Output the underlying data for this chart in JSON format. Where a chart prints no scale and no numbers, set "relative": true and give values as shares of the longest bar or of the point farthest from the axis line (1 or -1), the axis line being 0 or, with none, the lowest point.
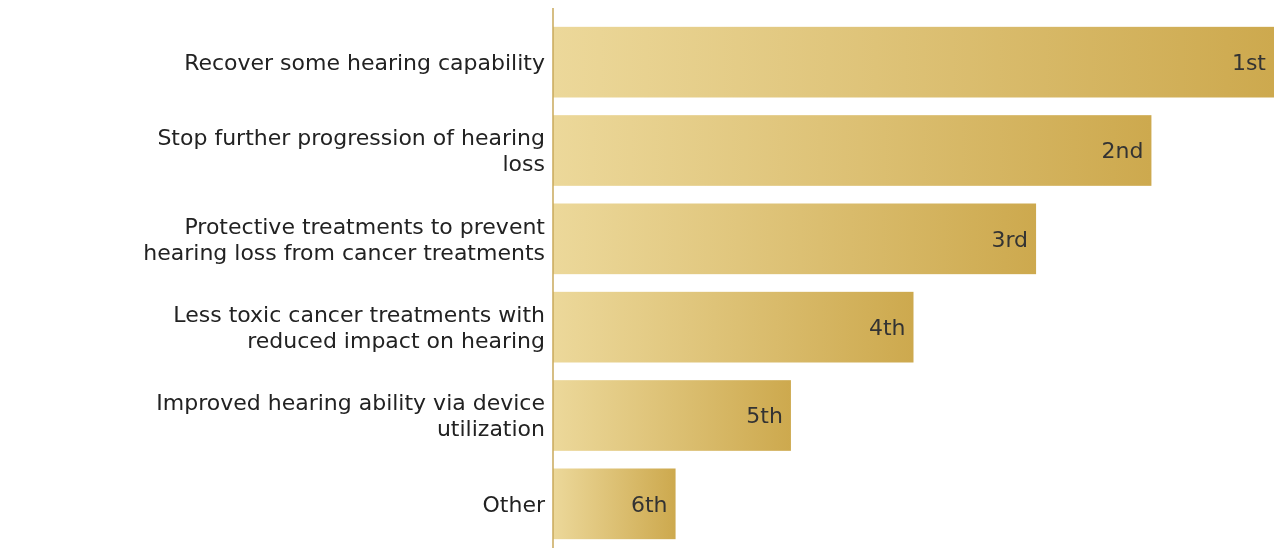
{
  "chart_data": {
    "type": "bar",
    "orientation": "horizontal",
    "relative": true,
    "categories": [
      "Recover some hearing capability",
      "Stop further progression of hearing loss",
      "Protective treatments to prevent hearing loss from cancer treatments",
      "Less toxic cancer treatments with reduced impact on hearing",
      "Improved hearing ability via device utilization",
      "Other"
    ],
    "values": [
      1,
      0.83,
      0.67,
      0.5,
      0.33,
      0.17
    ],
    "color": "#dcb654",
    "annotations": [
      {
        "text": "1st",
        "x": 1,
        "y": "Recover some hearing capability"
      },
      {
        "text": "2nd",
        "x": 0.83,
        "y": "Stop further progression of hearing loss"
      },
      {
        "text": "3rd",
        "x": 0.67,
        "y": "Protective treatments to prevent hearing loss from cancer treatments"
      },
      {
        "text": "4th",
        "x": 0.5,
        "y": "Less toxic cancer treatments with reduced impact on hearing"
      },
      {
        "text": "5th",
        "x": 0.33,
        "y": "Improved hearing ability via device utilization"
      },
      {
        "text": "6th",
        "x": 0.17,
        "y": "Other"
      }
    ]
  }
}
